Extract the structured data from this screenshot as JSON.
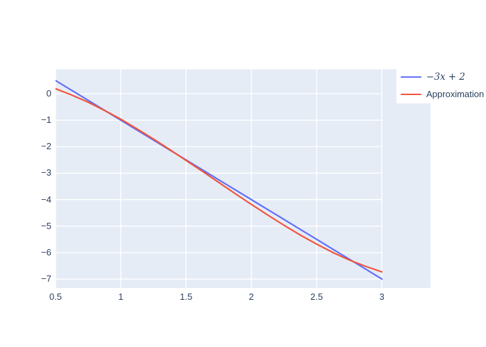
{
  "chart_data": {
    "type": "line",
    "title": "",
    "xlabel": "",
    "ylabel": "",
    "x_range": [
      0.5,
      3.372
    ],
    "y_range": [
      -7.34,
      0.92
    ],
    "grid": true,
    "grid_x_span": [
      0.5,
      3.0
    ],
    "legend_position": "outside-top-right",
    "x_ticks": {
      "values": [
        0.5,
        1,
        1.5,
        2,
        2.5,
        3
      ],
      "labels": [
        "0.5",
        "1",
        "1.5",
        "2",
        "2.5",
        "3"
      ]
    },
    "y_ticks": {
      "values": [
        0,
        -1,
        -2,
        -3,
        -4,
        -5,
        -6,
        -7
      ],
      "labels": [
        "0",
        "−1",
        "−2",
        "−3",
        "−4",
        "−5",
        "−6",
        "−7"
      ]
    },
    "x": [
      0.5,
      0.625,
      0.75,
      0.875,
      1,
      1.125,
      1.25,
      1.375,
      1.5,
      1.625,
      1.75,
      1.875,
      2,
      2.125,
      2.25,
      2.375,
      2.5,
      2.625,
      2.75,
      2.875,
      3
    ],
    "series": [
      {
        "name": "−3x + 2",
        "color": "#636EFA",
        "label_style": "math",
        "values": [
          0.5,
          0.125,
          -0.25,
          -0.625,
          -1,
          -1.375,
          -1.75,
          -2.125,
          -2.5,
          -2.875,
          -3.25,
          -3.625,
          -4,
          -4.375,
          -4.75,
          -5.125,
          -5.5,
          -5.875,
          -6.25,
          -6.625,
          -7
        ]
      },
      {
        "name": "Approximation",
        "color": "#EF553B",
        "label_style": "plain",
        "values": [
          0.19,
          -0.05,
          -0.32,
          -0.63,
          -0.96,
          -1.33,
          -1.71,
          -2.11,
          -2.52,
          -2.93,
          -3.35,
          -3.77,
          -4.18,
          -4.58,
          -4.97,
          -5.34,
          -5.68,
          -6.0,
          -6.28,
          -6.52,
          -6.73
        ]
      }
    ],
    "colors": {
      "plot_bg": "#E5ECF6",
      "grid": "#FFFFFF",
      "text": "#2A3F5F",
      "paper": "#FFFFFF"
    }
  }
}
